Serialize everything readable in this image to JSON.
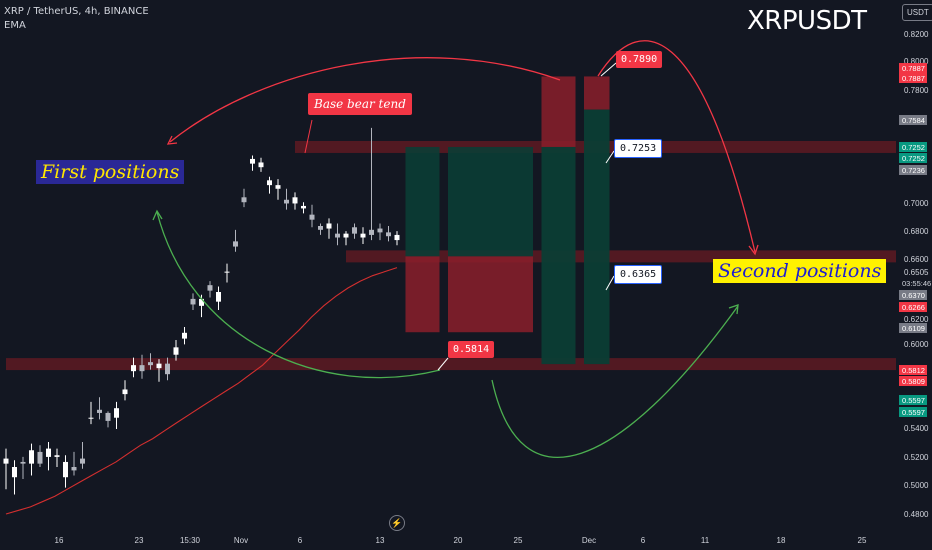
{
  "header": {
    "symbol_line": "XRP / TetherUS, 4h, BINANCE",
    "indicator": "EMA",
    "big_symbol": "XRPUSDT",
    "currency_badge": "USDT"
  },
  "annotations": {
    "first_positions": "First positions",
    "second_positions": "Second positions",
    "base_bear_tend": "Base bear tend",
    "level_0789": "0.7890",
    "level_07253": "0.7253",
    "level_06365": "0.6365",
    "level_05814": "0.5814"
  },
  "icons": {
    "replay": "lightning-icon"
  },
  "colors": {
    "background": "#131722",
    "up": "#ffffff",
    "down": "#b2b5be",
    "ema": "#d32f2f",
    "zone": "#5e1a22",
    "loss": "#8b1e2a",
    "profit": "#0b3d35",
    "green_arrow": "#4caf50",
    "red_arrow": "#f23645"
  },
  "chart_data": {
    "type": "candlestick",
    "title": "",
    "symbol": "XRP / TetherUS",
    "interval": "4h",
    "exchange": "BINANCE",
    "x_axis": {
      "tick_labels": [
        "16",
        "23",
        "15:30",
        "Nov",
        "6",
        "13",
        "20",
        "25",
        "Dec",
        "6",
        "11",
        "18",
        "25"
      ]
    },
    "y_axis": {
      "scale": "log",
      "range": [
        0.468,
        0.83
      ],
      "tick_labels": [
        "0.8200",
        "0.8000",
        "0.7800",
        "0.7000",
        "0.6800",
        "0.6600",
        "0.6505",
        "0.6200",
        "0.6000",
        "0.5400",
        "0.5200",
        "0.5000",
        "0.4800"
      ],
      "price_badges": [
        {
          "text": "0.7887",
          "color": "#f23645"
        },
        {
          "text": "0.7887",
          "color": "#f23645"
        },
        {
          "text": "0.7584",
          "color": "#787b86"
        },
        {
          "text": "0.7252",
          "color": "#089981"
        },
        {
          "text": "0.7252",
          "color": "#089981"
        },
        {
          "text": "0.7236",
          "color": "#787b86"
        },
        {
          "text": "03:55:46",
          "color": "#131722"
        },
        {
          "text": "0.6370",
          "color": "#787b86"
        },
        {
          "text": "0.6266",
          "color": "#f23645"
        },
        {
          "text": "0.6109",
          "color": "#787b86"
        },
        {
          "text": "0.5812",
          "color": "#f23645"
        },
        {
          "text": "0.5809",
          "color": "#f23645"
        },
        {
          "text": "0.5597",
          "color": "#089981"
        },
        {
          "text": "0.5597",
          "color": "#089981"
        }
      ]
    },
    "key_levels": [
      {
        "price": 0.7253,
        "from": 34
      },
      {
        "price": 0.6365,
        "from": 40
      },
      {
        "price": 0.5597,
        "from": 0
      }
    ],
    "trade_boxes": [
      {
        "from": 47,
        "to": 51,
        "entry": 0.7253,
        "target": 0.6365,
        "stop": 0.5814,
        "kind": "short-loss"
      },
      {
        "from": 52,
        "to": 62,
        "entry": 0.7253,
        "target": 0.6365,
        "stop": 0.5814,
        "kind": "short-loss-low"
      },
      {
        "from": 63,
        "to": 67,
        "entry": 0.7253,
        "target": 0.5597,
        "stop": 0.789,
        "kind": "long-hit"
      },
      {
        "from": 68,
        "to": 71,
        "entry": 0.7584,
        "target": 0.5597,
        "stop": 0.789,
        "kind": "long-hit"
      }
    ],
    "candles": [
      [
        0.497,
        0.5,
        0.486,
        0.482,
        0.506
      ],
      [
        0.489,
        0.495,
        0.483,
        0.479,
        0.499
      ],
      [
        0.498,
        0.497,
        0.492,
        0.488,
        0.501
      ],
      [
        0.497,
        0.505,
        0.494,
        0.49,
        0.509
      ],
      [
        0.504,
        0.497,
        0.5,
        0.495,
        0.508
      ],
      [
        0.501,
        0.506,
        0.497,
        0.493,
        0.51
      ],
      [
        0.501,
        0.502,
        0.499,
        0.495,
        0.506
      ],
      [
        0.489,
        0.498,
        0.486,
        0.483,
        0.502
      ],
      [
        0.495,
        0.493,
        0.5,
        0.49,
        0.504
      ],
      [
        0.5,
        0.497,
        0.506,
        0.494,
        0.51
      ],
      [
        0.525,
        0.525,
        0.531,
        0.521,
        0.535
      ],
      [
        0.53,
        0.528,
        0.533,
        0.524,
        0.538
      ],
      [
        0.528,
        0.523,
        0.525,
        0.519,
        0.529
      ],
      [
        0.525,
        0.531,
        0.521,
        0.518,
        0.535
      ],
      [
        0.54,
        0.543,
        0.545,
        0.536,
        0.549
      ],
      [
        0.555,
        0.559,
        0.557,
        0.551,
        0.564
      ],
      [
        0.559,
        0.555,
        0.561,
        0.55,
        0.566
      ],
      [
        0.561,
        0.559,
        0.563,
        0.556,
        0.567
      ],
      [
        0.557,
        0.56,
        0.552,
        0.548,
        0.563
      ],
      [
        0.56,
        0.553,
        0.556,
        0.549,
        0.564
      ],
      [
        0.566,
        0.571,
        0.569,
        0.562,
        0.576
      ],
      [
        0.577,
        0.581,
        0.582,
        0.573,
        0.585
      ],
      [
        0.605,
        0.601,
        0.602,
        0.597,
        0.609
      ],
      [
        0.6,
        0.605,
        0.595,
        0.592,
        0.608
      ],
      [
        0.615,
        0.611,
        0.611,
        0.606,
        0.618
      ],
      [
        0.603,
        0.61,
        0.6,
        0.597,
        0.614
      ],
      [
        0.625,
        0.625,
        0.621,
        0.617,
        0.631
      ],
      [
        0.648,
        0.644,
        0.652,
        0.64,
        0.657
      ],
      [
        0.683,
        0.679,
        0.686,
        0.675,
        0.69
      ],
      [
        0.711,
        0.715,
        0.708,
        0.705,
        0.718
      ],
      [
        0.708,
        0.712,
        0.712,
        0.704,
        0.716
      ],
      [
        0.693,
        0.697,
        0.689,
        0.686,
        0.7
      ],
      [
        0.69,
        0.693,
        0.687,
        0.681,
        0.698
      ],
      [
        0.681,
        0.678,
        0.685,
        0.673,
        0.69
      ],
      [
        0.678,
        0.683,
        0.682,
        0.673,
        0.687
      ],
      [
        0.674,
        0.676,
        0.675,
        0.67,
        0.679
      ],
      [
        0.669,
        0.665,
        0.672,
        0.659,
        0.677
      ],
      [
        0.66,
        0.657,
        0.658,
        0.653,
        0.662
      ],
      [
        0.658,
        0.662,
        0.654,
        0.65,
        0.666
      ],
      [
        0.654,
        0.651,
        0.658,
        0.645,
        0.662
      ],
      [
        0.651,
        0.654,
        0.648,
        0.645,
        0.656
      ],
      [
        0.659,
        0.654,
        0.654,
        0.65,
        0.662
      ],
      [
        0.651,
        0.654,
        0.655,
        0.646,
        0.659
      ],
      [
        0.657,
        0.653,
        0.654,
        0.649,
        0.742
      ],
      [
        0.658,
        0.655,
        0.658,
        0.649,
        0.662
      ],
      [
        0.655,
        0.652,
        0.658,
        0.648,
        0.66
      ],
      [
        0.649,
        0.653,
        0.65,
        0.645,
        0.656
      ]
    ],
    "ema": [
      0.468,
      0.47,
      0.472,
      0.475,
      0.478,
      0.482,
      0.486,
      0.49,
      0.494,
      0.498,
      0.503,
      0.508,
      0.512,
      0.517,
      0.522,
      0.527,
      0.532,
      0.537,
      0.542,
      0.547,
      0.553,
      0.559,
      0.567,
      0.575,
      0.583,
      0.592,
      0.6,
      0.607,
      0.613,
      0.618,
      0.622,
      0.625,
      0.628
    ]
  }
}
